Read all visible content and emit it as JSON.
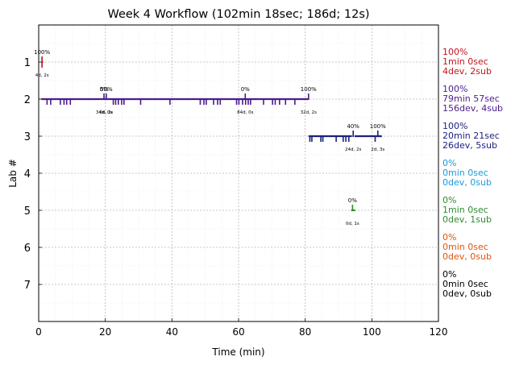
{
  "chart_data": {
    "type": "timeline",
    "title": "Week 4 Workflow (102min 18sec; 186d; 12s)",
    "xlabel": "Time (min)",
    "ylabel": "Lab #",
    "xlim": [
      0,
      120
    ],
    "ylim": [
      8,
      0
    ],
    "xticks": [
      "0",
      "20",
      "40",
      "60",
      "80",
      "100",
      "120"
    ],
    "yticks": [
      "1",
      "2",
      "3",
      "4",
      "5",
      "6",
      "7"
    ],
    "grid": true,
    "labs": [
      {
        "lab": 1,
        "color": "#c0141e",
        "segments": [
          [
            0.8,
            1.3
          ]
        ],
        "events": [
          1.0
        ],
        "markers": [
          {
            "x": 1.0,
            "label": "100%",
            "sub": "4d, 2s"
          }
        ],
        "stats": [
          "100%",
          "1min 0sec",
          "4dev, 2sub"
        ]
      },
      {
        "lab": 2,
        "color": "#4b1c8c",
        "segments": [
          [
            0.8,
            81.0
          ]
        ],
        "events": [
          2.5,
          3.6,
          6.5,
          7.6,
          8.4,
          9.5,
          22.4,
          23.1,
          23.9,
          24.9,
          25.6,
          30.6,
          39.4,
          48.5,
          49.6,
          50.3,
          52.5,
          53.7,
          54.5,
          59.4,
          60.1,
          61.2,
          62.1,
          62.9,
          63.6,
          67.5,
          70.2,
          71.0,
          72.3,
          74.1,
          76.9
        ],
        "markers": [
          {
            "x": 19.6,
            "label": "0%",
            "sub": "34d, 0s"
          },
          {
            "x": 20.3,
            "label": "50%",
            "sub": "0d, 2s"
          },
          {
            "x": 62.0,
            "label": "0%",
            "sub": "84d, 0s"
          },
          {
            "x": 81.0,
            "label": "100%",
            "sub": "32d, 2s"
          }
        ],
        "stats": [
          "100%",
          "79min 57sec",
          "156dev, 4sub"
        ]
      },
      {
        "lab": 3,
        "color": "#1a2380",
        "segments": [
          [
            81.0,
            94.0
          ],
          [
            94.8,
            103.0
          ]
        ],
        "events": [
          81.4,
          82.0,
          84.7,
          85.3,
          89.3,
          91.4,
          92.2,
          93.1,
          101.0
        ],
        "markers": [
          {
            "x": 94.4,
            "label": "40%",
            "sub": "24d, 2s"
          },
          {
            "x": 101.8,
            "label": "100%",
            "sub": "2d, 3s"
          }
        ],
        "stats": [
          "100%",
          "20min 21sec",
          "26dev, 5sub"
        ]
      },
      {
        "lab": 4,
        "color": "#1a9ad8",
        "segments": [],
        "events": [],
        "markers": [],
        "stats": [
          "0%",
          "0min 0sec",
          "0dev, 0sub"
        ]
      },
      {
        "lab": 5,
        "color": "#2e8b2e",
        "segments": [
          [
            93.8,
            95.0
          ]
        ],
        "events": [],
        "markers": [
          {
            "x": 94.2,
            "label": "0%",
            "sub": "0d, 1s"
          }
        ],
        "stats": [
          "0%",
          "1min 0sec",
          "0dev, 1sub"
        ]
      },
      {
        "lab": 6,
        "color": "#e0540c",
        "segments": [],
        "events": [],
        "markers": [],
        "stats": [
          "0%",
          "0min 0sec",
          "0dev, 0sub"
        ]
      },
      {
        "lab": 7,
        "color": "#000000",
        "segments": [],
        "events": [],
        "markers": [],
        "stats": [
          "0%",
          "0min 0sec",
          "0dev, 0sub"
        ]
      }
    ]
  }
}
